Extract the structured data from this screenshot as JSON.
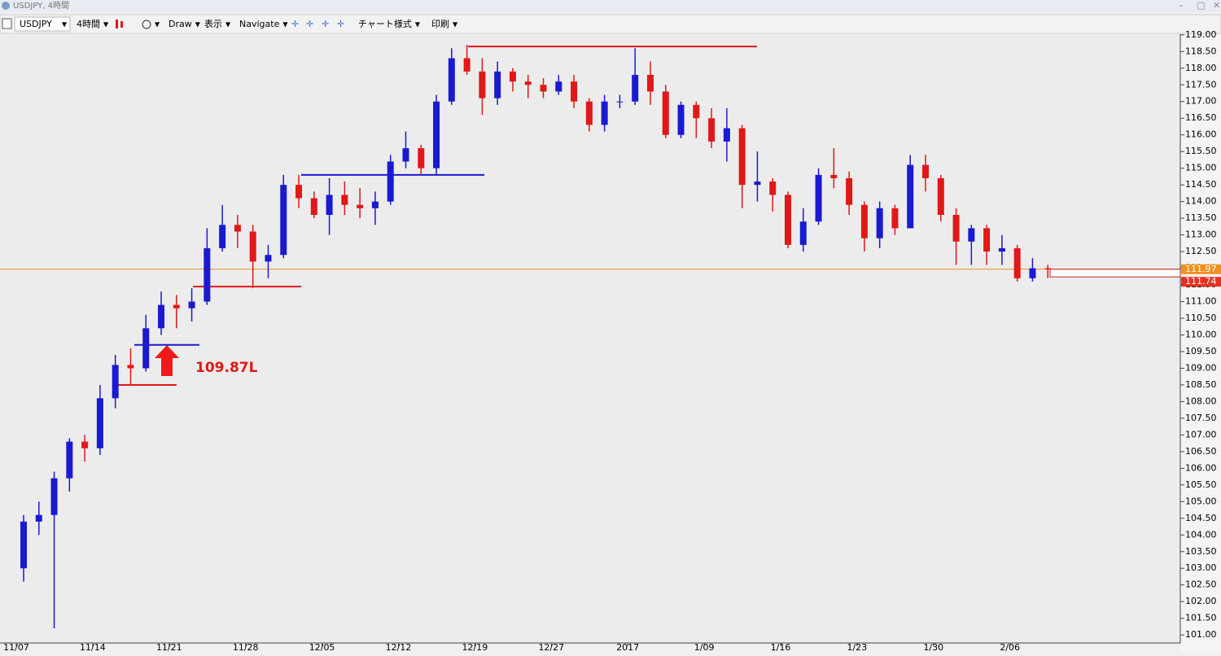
{
  "window_title": "USDJPY, 4時間",
  "toolbar": {
    "symbol": "USDJPY",
    "timeframe": "4時間",
    "items": [
      "Draw",
      "表示",
      "Navigate",
      "チャート様式",
      "印刷"
    ]
  },
  "chart_data": {
    "type": "candlestick",
    "categories": [
      "11/07",
      null,
      null,
      null,
      null,
      "11/14",
      null,
      null,
      null,
      null,
      "11/21",
      null,
      null,
      null,
      null,
      "11/28",
      null,
      null,
      null,
      null,
      "12/05",
      null,
      null,
      null,
      null,
      "12/12",
      null,
      null,
      null,
      null,
      "12/19",
      null,
      null,
      null,
      null,
      "12/27",
      null,
      null,
      null,
      null,
      "2017",
      null,
      null,
      null,
      null,
      "1/09",
      null,
      null,
      null,
      null,
      "1/16",
      null,
      null,
      null,
      null,
      "1/23",
      null,
      null,
      null,
      null,
      "1/30",
      null,
      null,
      null,
      null,
      "2/06",
      null,
      null
    ],
    "open": [
      103.0,
      104.4,
      104.6,
      105.7,
      106.8,
      106.6,
      108.1,
      109.1,
      109.0,
      110.2,
      110.9,
      110.8,
      111.0,
      112.6,
      113.3,
      113.1,
      112.2,
      112.4,
      114.5,
      114.1,
      113.6,
      114.2,
      113.9,
      113.8,
      114.0,
      115.2,
      115.6,
      115.0,
      117.0,
      118.3,
      117.9,
      117.1,
      117.9,
      117.6,
      117.5,
      117.3,
      117.6,
      117.0,
      116.3,
      117.0,
      117.0,
      117.8,
      117.3,
      116.0,
      116.9,
      116.5,
      115.8,
      116.2,
      114.5,
      114.6,
      114.2,
      112.7,
      113.4,
      114.8,
      114.7,
      113.9,
      112.9,
      113.8,
      113.2,
      115.1,
      114.7,
      113.6,
      112.8,
      113.2,
      112.5,
      112.6,
      111.7,
      112.0
    ],
    "high": [
      104.6,
      105.0,
      105.9,
      106.9,
      107.0,
      108.5,
      109.4,
      109.6,
      110.6,
      111.3,
      111.2,
      111.4,
      113.2,
      113.9,
      113.6,
      113.3,
      112.7,
      114.8,
      114.8,
      114.3,
      114.7,
      114.6,
      114.4,
      114.3,
      115.4,
      116.1,
      115.7,
      117.2,
      118.6,
      118.7,
      118.3,
      118.2,
      118.0,
      117.8,
      117.7,
      117.8,
      117.8,
      117.1,
      117.2,
      117.2,
      118.6,
      118.2,
      117.5,
      117.0,
      117.0,
      116.8,
      116.8,
      116.3,
      115.5,
      114.7,
      114.3,
      113.8,
      115.0,
      115.6,
      114.9,
      114.0,
      114.0,
      113.9,
      115.4,
      115.4,
      114.8,
      113.8,
      113.3,
      113.3,
      113.0,
      112.7,
      112.3,
      112.1
    ],
    "low": [
      102.6,
      104.0,
      101.2,
      105.3,
      106.2,
      106.4,
      107.8,
      108.5,
      108.9,
      110.0,
      110.2,
      110.4,
      110.9,
      112.5,
      112.6,
      111.4,
      111.7,
      112.3,
      113.8,
      113.5,
      113.0,
      113.6,
      113.5,
      113.3,
      113.9,
      115.0,
      114.8,
      114.8,
      116.9,
      117.8,
      116.6,
      116.9,
      117.3,
      117.1,
      117.1,
      117.2,
      116.8,
      116.1,
      116.1,
      116.8,
      116.9,
      116.9,
      115.9,
      115.9,
      115.9,
      115.6,
      115.2,
      113.8,
      114.0,
      113.7,
      112.6,
      112.5,
      113.3,
      114.4,
      113.6,
      112.5,
      112.6,
      113.0,
      113.2,
      114.3,
      113.4,
      112.1,
      112.1,
      112.1,
      112.1,
      111.6,
      111.6,
      111.7
    ],
    "close": [
      104.4,
      104.6,
      105.7,
      106.8,
      106.6,
      108.1,
      109.1,
      109.0,
      110.2,
      110.9,
      110.8,
      111.0,
      112.6,
      113.3,
      113.1,
      112.2,
      112.4,
      114.5,
      114.1,
      113.6,
      114.2,
      113.9,
      113.8,
      114.0,
      115.2,
      115.6,
      115.0,
      117.0,
      118.3,
      117.9,
      117.1,
      117.9,
      117.6,
      117.5,
      117.3,
      117.6,
      117.0,
      116.3,
      117.0,
      117.0,
      117.8,
      117.3,
      116.0,
      116.9,
      116.5,
      115.8,
      116.2,
      114.5,
      114.6,
      114.2,
      112.7,
      113.4,
      114.8,
      114.7,
      113.9,
      112.9,
      113.8,
      113.2,
      115.1,
      114.7,
      113.6,
      112.8,
      113.2,
      112.5,
      112.6,
      111.7,
      112.0,
      111.97
    ],
    "up_color": "#1a1ad0",
    "down_color": "#e01818",
    "ylim": [
      100.76,
      119.02
    ],
    "yticks": [
      {
        "value": 101,
        "label": "101.00"
      },
      {
        "value": 101.5,
        "label": "101.50"
      },
      {
        "value": 102,
        "label": "102.00"
      },
      {
        "value": 102.5,
        "label": "102.50"
      },
      {
        "value": 103,
        "label": "103.00"
      },
      {
        "value": 103.5,
        "label": "103.50"
      },
      {
        "value": 104,
        "label": "104.00"
      },
      {
        "value": 104.5,
        "label": "104.50"
      },
      {
        "value": 105,
        "label": "105.00"
      },
      {
        "value": 105.5,
        "label": "105.50"
      },
      {
        "value": 106,
        "label": "106.00"
      },
      {
        "value": 106.5,
        "label": "106.50"
      },
      {
        "value": 107,
        "label": "107.00"
      },
      {
        "value": 107.5,
        "label": "107.50"
      },
      {
        "value": 108,
        "label": "108.00"
      },
      {
        "value": 108.5,
        "label": "108.50"
      },
      {
        "value": 109,
        "label": "109.00"
      },
      {
        "value": 109.5,
        "label": "109.50"
      },
      {
        "value": 110,
        "label": "110.00"
      },
      {
        "value": 110.5,
        "label": "110.50"
      },
      {
        "value": 111,
        "label": "111.00"
      },
      {
        "value": 111.5,
        "label": "111.50"
      },
      {
        "value": 112,
        "label": "112.00"
      },
      {
        "value": 112.5,
        "label": "112.50"
      },
      {
        "value": 113,
        "label": "113.00"
      },
      {
        "value": 113.5,
        "label": "113.50"
      },
      {
        "value": 114,
        "label": "114.00"
      },
      {
        "value": 114.5,
        "label": "114.50"
      },
      {
        "value": 115,
        "label": "115.00"
      },
      {
        "value": 115.5,
        "label": "115.50"
      },
      {
        "value": 116,
        "label": "116.00"
      },
      {
        "value": 116.5,
        "label": "116.50"
      },
      {
        "value": 117,
        "label": "117.00"
      },
      {
        "value": 117.5,
        "label": "117.50"
      },
      {
        "value": 118,
        "label": "118.00"
      },
      {
        "value": 118.5,
        "label": "118.50"
      },
      {
        "value": 119,
        "label": "119.00"
      }
    ],
    "hlines": [
      {
        "value": 118.65,
        "color": "#e01818"
      },
      {
        "value": 114.8,
        "color": "#1a1ad0"
      },
      {
        "value": 111.45,
        "color": "#e01818"
      },
      {
        "value": 109.7,
        "color": "#1a1ad0"
      },
      {
        "value": 108.5,
        "color": "#e01818"
      }
    ],
    "price_labels": [
      {
        "value": 111.97,
        "color": "#f0901e"
      },
      {
        "value": 111.74,
        "color": "#e83020"
      }
    ],
    "annotation": "109.87L"
  }
}
